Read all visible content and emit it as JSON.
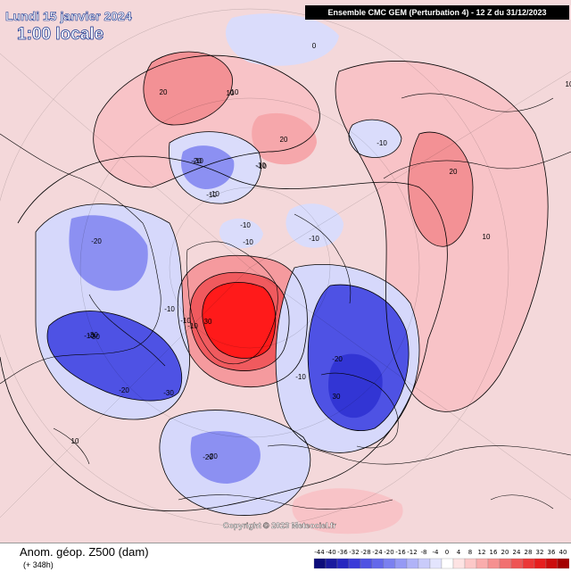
{
  "header": {
    "date": "Lundi 15 janvier 2024",
    "local_time": "1:00 locale",
    "model_run": "Ensemble CMC GEM  (Perturbation 4)  -  12 Z du 31/12/2023"
  },
  "footer": {
    "product": "Anom. géop. Z500 (dam)",
    "lead_time": "(+ 348h)",
    "copyright": "Copyright © 2023 Meteociel.fr"
  },
  "legend": {
    "values": [
      "-44",
      "-40",
      "-36",
      "-32",
      "-28",
      "-24",
      "-20",
      "-16",
      "-12",
      "-8",
      "-4",
      "0",
      "4",
      "8",
      "12",
      "16",
      "20",
      "24",
      "28",
      "32",
      "36",
      "40"
    ],
    "colors": [
      "#0d0d7a",
      "#1a1a9e",
      "#2626c0",
      "#3a3ad8",
      "#4f52e2",
      "#6468ea",
      "#7b80f0",
      "#9599f4",
      "#b0b3f7",
      "#c9cbfa",
      "#e3e4fd",
      "#ffffff",
      "#fde3e3",
      "#fcc8c8",
      "#f9acac",
      "#f59090",
      "#f17070",
      "#ee5454",
      "#eb3636",
      "#e61e1e",
      "#cc0d0d",
      "#a30000"
    ]
  },
  "contour_labels": [
    "20",
    "10",
    "0",
    "-10",
    "20",
    "-10",
    "-20",
    "-10",
    "-10",
    "-10",
    "10",
    "10",
    "20",
    "-20",
    "-10",
    "-10",
    "-10",
    "-10",
    "30",
    "-20",
    "-30",
    "-10",
    "-30",
    "-20",
    "-30",
    "-20",
    "-10",
    "10",
    "30",
    "-20",
    "-10",
    "10",
    "-10",
    "-10"
  ],
  "map": {
    "colors": {
      "sea_background": "#f4d8da",
      "positive_light": "#f8c9cc",
      "positive_mid": "#f59a9e",
      "positive_strong": "#f05a5e",
      "positive_core": "#ff1a1a",
      "negative_light": "#d4d6fb",
      "negative_mid": "#8c90f2",
      "negative_strong": "#4e52e4",
      "negative_core": "#2f32d2",
      "coastline": "#000000"
    }
  }
}
